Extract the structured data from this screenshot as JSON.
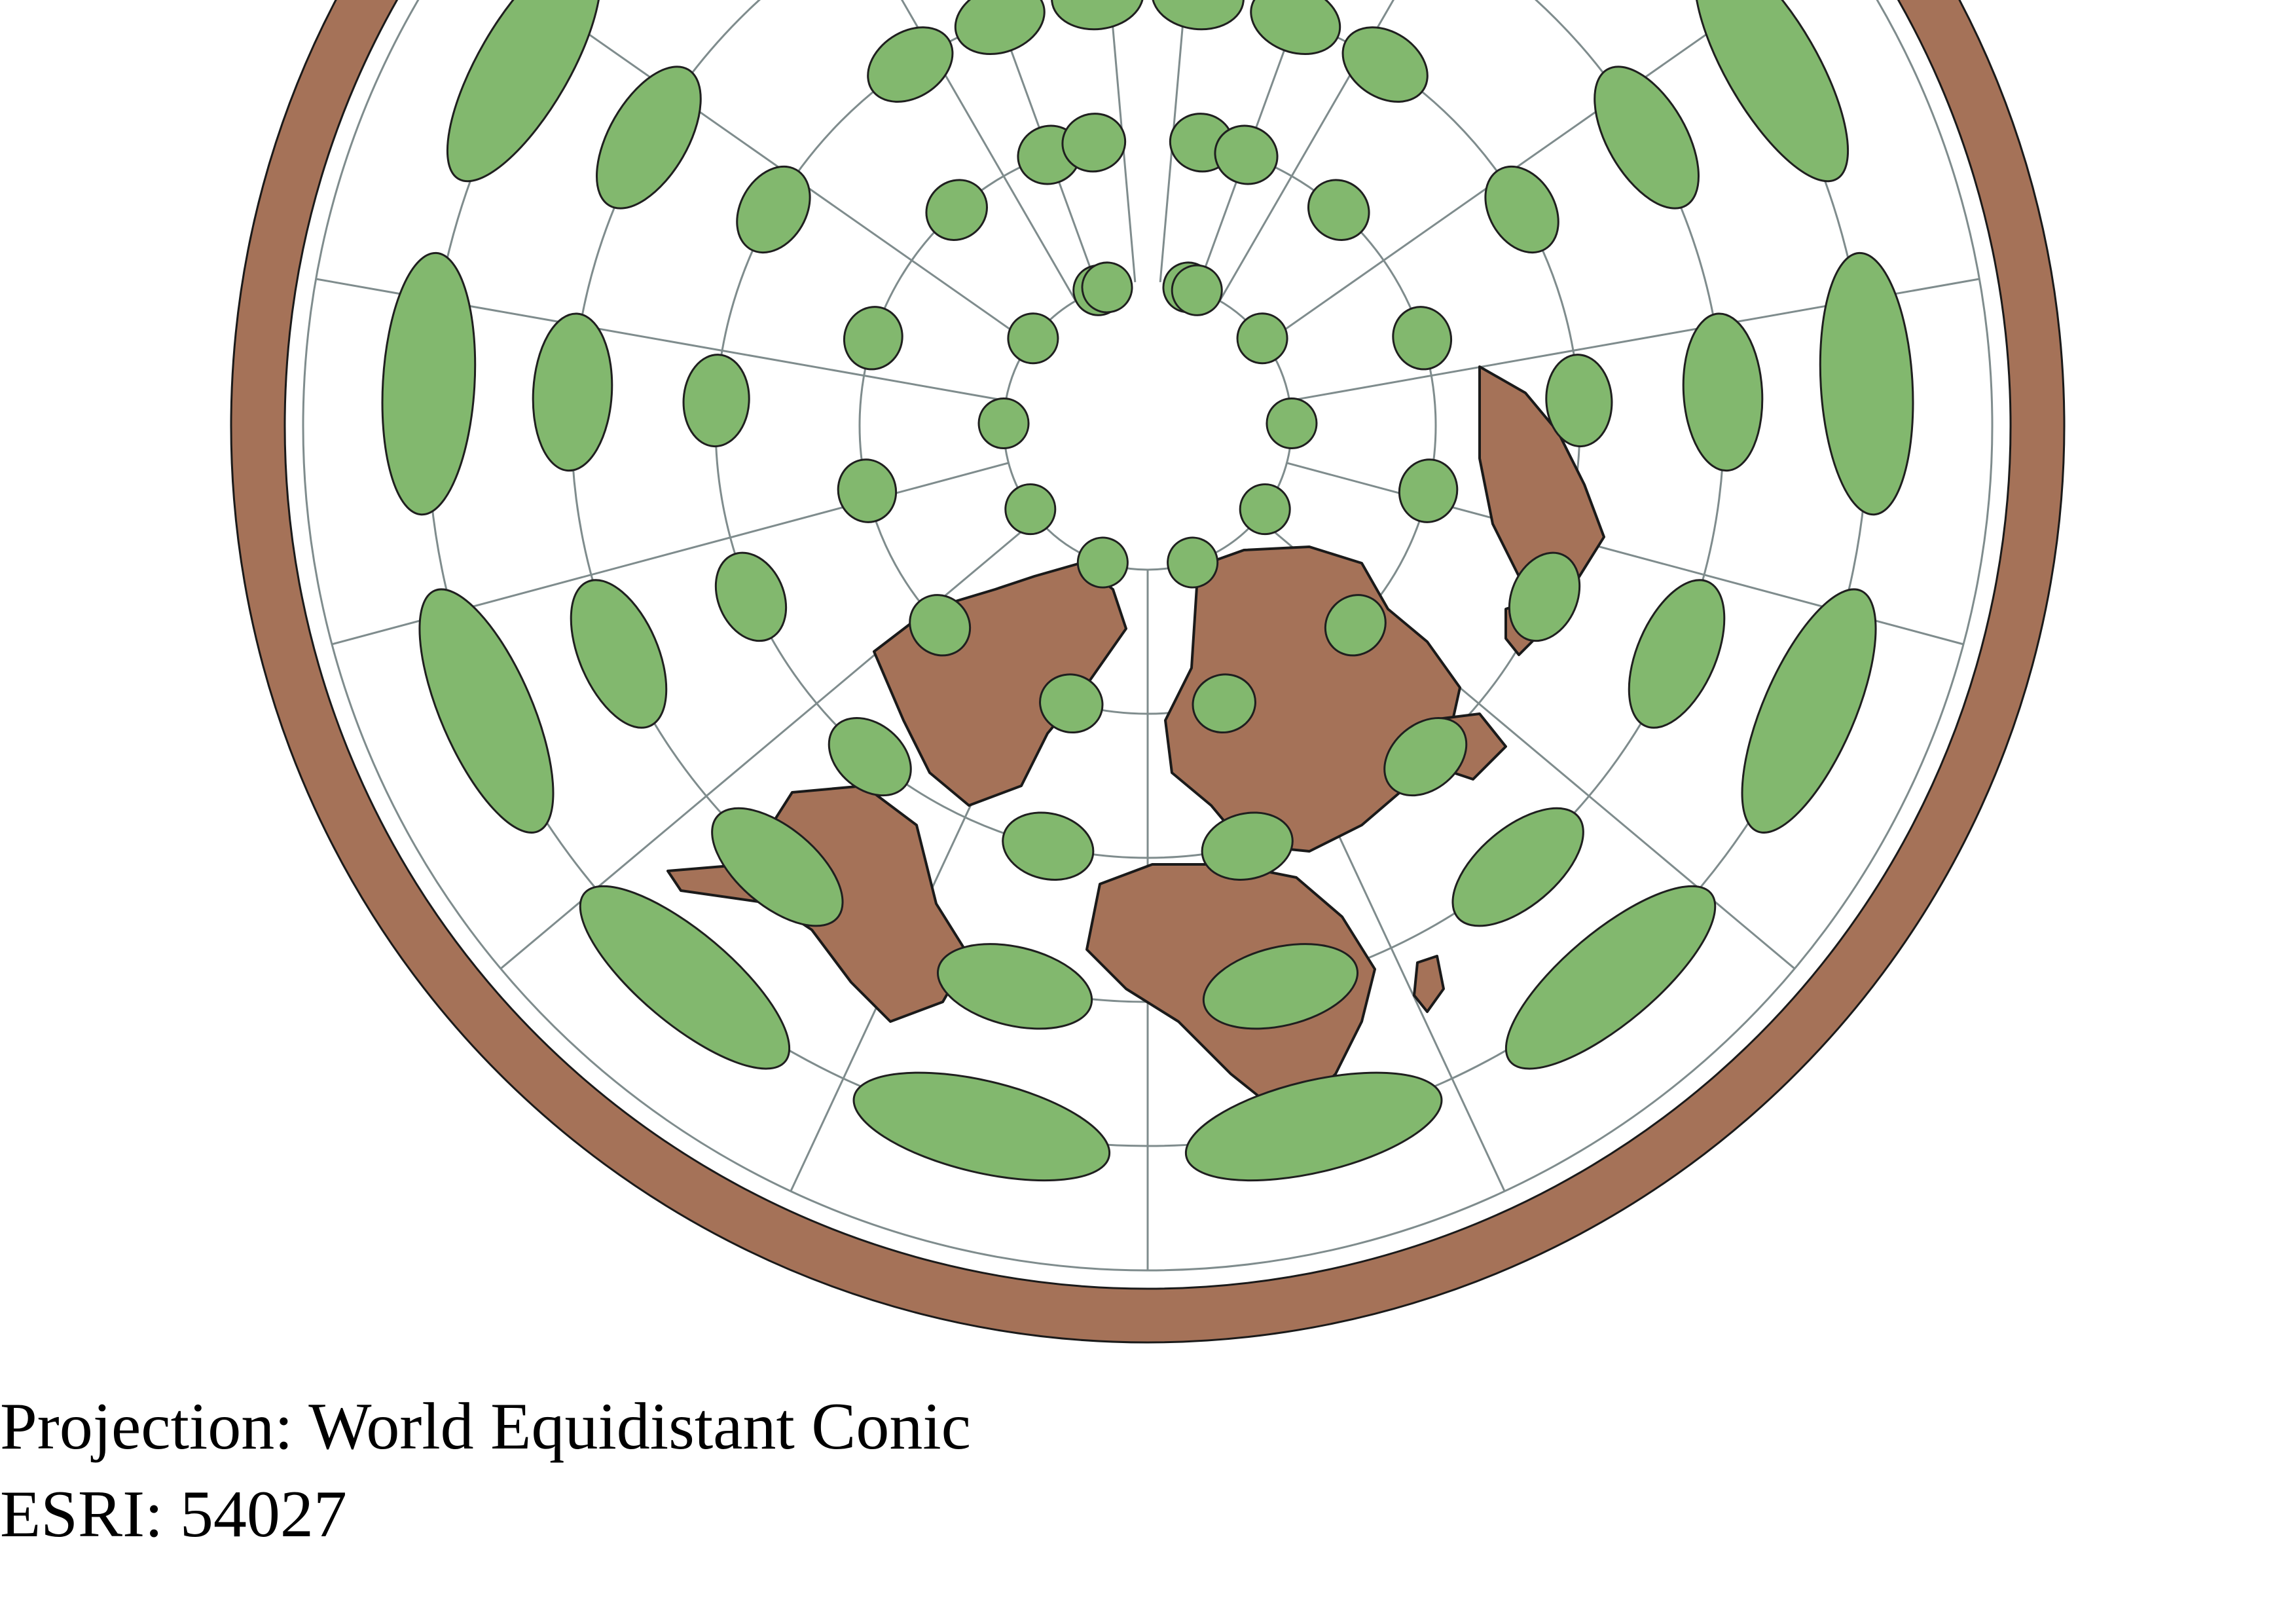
{
  "map": {
    "projection_name": "World Equidistant Conic",
    "graticule": "on",
    "tissot_indicatrices": "on",
    "colors": {
      "background": "#ffffff",
      "land": "#a57258",
      "outline": "#1a1a1a",
      "indicatrix_fill": "#82b86e",
      "indicatrix_stroke": "#1f1f1f",
      "graticule": "#7f8c8d"
    }
  },
  "caption": {
    "projection_line": "Projection: World Equidistant Conic",
    "code_line": "ESRI: 54027"
  }
}
